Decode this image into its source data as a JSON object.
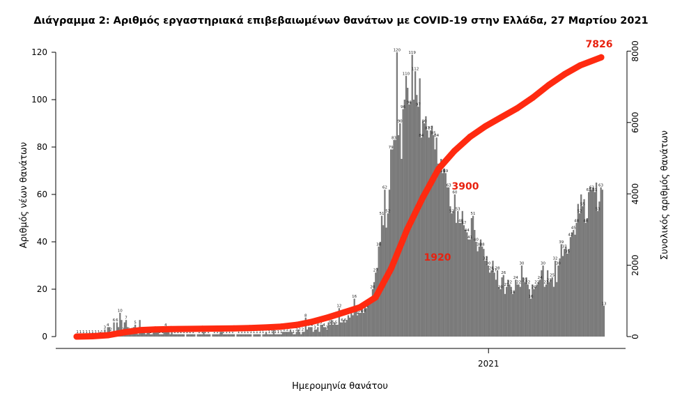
{
  "chart_data": {
    "type": "bar",
    "title": "Διάγραμμα 2: Αριθμός εργαστηριακά επιβεβαιωμένων θανάτων με COVID-19 στην Ελλάδα, 27 Μαρτίου 2021",
    "xlabel": "Ημερομηνία θανάτου",
    "ylabel": "Αριθμός νέων θανάτων",
    "y2label": "Συνολικός αριθμός θανάτων",
    "x_tick_labels": [
      {
        "label": "2021",
        "x": 0.78
      }
    ],
    "ylim": [
      0,
      120
    ],
    "yticks": [
      0,
      20,
      40,
      60,
      80,
      100,
      120
    ],
    "y2lim": [
      0,
      8000
    ],
    "y2ticks": [
      0,
      2000,
      4000,
      6000,
      8000
    ],
    "grid": false,
    "series": [
      {
        "name": "",
        "kind": "bar",
        "color": "#7a7a7a",
        "values": [
          1,
          1,
          1,
          1,
          1,
          1,
          1,
          1,
          1,
          1,
          1,
          1,
          1,
          0,
          1,
          2,
          1,
          0,
          3,
          1,
          4,
          4,
          2,
          2,
          6,
          1,
          6,
          4,
          10,
          7,
          2,
          6,
          7,
          4,
          2,
          2,
          2,
          4,
          5,
          2,
          1,
          7,
          2,
          2,
          2,
          1,
          2,
          2,
          1,
          1,
          2,
          2,
          2,
          2,
          1,
          1,
          1,
          2,
          4,
          2,
          2,
          1,
          2,
          1,
          1,
          1,
          1,
          1,
          1,
          1,
          1,
          0,
          1,
          1,
          1,
          1,
          1,
          1,
          0,
          1,
          1,
          1,
          1,
          2,
          1,
          1,
          1,
          1,
          0,
          1,
          1,
          1,
          1,
          1,
          2,
          2,
          1,
          1,
          1,
          1,
          1,
          1,
          1,
          1,
          0,
          1,
          1,
          1,
          1,
          1,
          1,
          1,
          1,
          1,
          1,
          0,
          1,
          1,
          1,
          1,
          1,
          0,
          1,
          1,
          2,
          1,
          1,
          1,
          1,
          4,
          1,
          1,
          1,
          1,
          1,
          2,
          2,
          2,
          2,
          2,
          3,
          2,
          1,
          1,
          2,
          3,
          2,
          1,
          2,
          2,
          8,
          3,
          4,
          4,
          4,
          2,
          3,
          3,
          4,
          2,
          5,
          5,
          4,
          4,
          3,
          6,
          5,
          7,
          5,
          6,
          5,
          5,
          12,
          6,
          6,
          7,
          6,
          7,
          9,
          8,
          10,
          9,
          16,
          12,
          9,
          10,
          10,
          12,
          10,
          14,
          12,
          14,
          14,
          16,
          20,
          23,
          27,
          29,
          38,
          40,
          51,
          47,
          62,
          46,
          52,
          62,
          79,
          79,
          83,
          83,
          120,
          85,
          90,
          75,
          96,
          100,
          110,
          105,
          98,
          99,
          119,
          100,
          112,
          102,
          97,
          109,
          84,
          91,
          90,
          93,
          87,
          84,
          87,
          89,
          85,
          79,
          84,
          73,
          70,
          75,
          69,
          71,
          69,
          63,
          63,
          55,
          52,
          53,
          60,
          48,
          53,
          48,
          48,
          53,
          47,
          45,
          44,
          41,
          41,
          50,
          51,
          45,
          40,
          36,
          38,
          41,
          38,
          37,
          32,
          34,
          30,
          27,
          28,
          32,
          27,
          24,
          28,
          21,
          20,
          25,
          26,
          18,
          21,
          24,
          22,
          21,
          18,
          19,
          24,
          22,
          22,
          21,
          30,
          25,
          23,
          25,
          22,
          20,
          16,
          22,
          20,
          21,
          22,
          23,
          24,
          28,
          30,
          21,
          22,
          28,
          23,
          24,
          25,
          21,
          32,
          23,
          30,
          33,
          39,
          34,
          37,
          38,
          35,
          37,
          42,
          44,
          45,
          43,
          48,
          56,
          52,
          60,
          55,
          58,
          48,
          50,
          61,
          63,
          62,
          63,
          61,
          65,
          53,
          57,
          63,
          62,
          13
        ]
      },
      {
        "name": "",
        "kind": "cumulative-line",
        "color": "#ff2a10",
        "x_fraction": [
          0.0,
          0.03,
          0.06,
          0.09,
          0.12,
          0.15,
          0.18,
          0.21,
          0.24,
          0.27,
          0.3,
          0.33,
          0.36,
          0.39,
          0.42,
          0.45,
          0.48,
          0.51,
          0.54,
          0.57,
          0.6,
          0.63,
          0.66,
          0.69,
          0.72,
          0.75,
          0.78,
          0.81,
          0.84,
          0.87,
          0.9,
          0.93,
          0.96,
          1.0
        ],
        "values": [
          0,
          10,
          40,
          120,
          180,
          200,
          210,
          215,
          220,
          225,
          230,
          240,
          255,
          280,
          330,
          420,
          540,
          680,
          820,
          1100,
          1920,
          3000,
          3900,
          4700,
          5200,
          5600,
          5900,
          6150,
          6400,
          6700,
          7050,
          7350,
          7600,
          7826
        ]
      }
    ],
    "annotations": [
      "7826",
      "3900",
      "1920"
    ]
  }
}
